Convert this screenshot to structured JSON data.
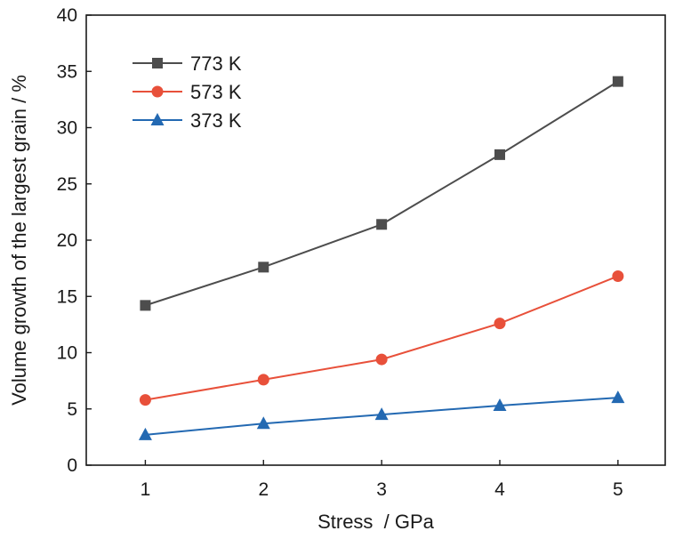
{
  "chart_data": {
    "type": "line",
    "xlabel": "Stress  / GPa",
    "ylabel": "Volume growth of the largest grain / %",
    "x": [
      1,
      2,
      3,
      4,
      5
    ],
    "xlim": [
      0.5,
      5.4
    ],
    "ylim": [
      0,
      40
    ],
    "xticks": [
      "1",
      "2",
      "3",
      "4",
      "5"
    ],
    "yticks": [
      "0",
      "5",
      "10",
      "15",
      "20",
      "25",
      "30",
      "35",
      "40"
    ],
    "grid": false,
    "legend_position": "top-left",
    "series": [
      {
        "name": "773 K",
        "color": "#4d4d4d",
        "marker": "square",
        "values": [
          14.2,
          17.6,
          21.4,
          27.6,
          34.1
        ]
      },
      {
        "name": "573 K",
        "color": "#e8503a",
        "marker": "circle",
        "values": [
          5.8,
          7.6,
          9.4,
          12.6,
          16.8
        ]
      },
      {
        "name": "373 K",
        "color": "#2369b2",
        "marker": "triangle",
        "values": [
          2.7,
          3.7,
          4.5,
          5.3,
          6.0
        ]
      }
    ]
  }
}
